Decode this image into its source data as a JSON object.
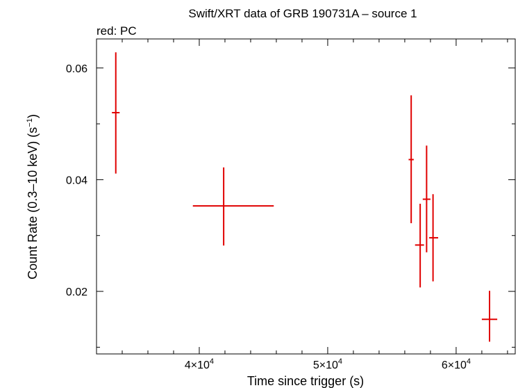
{
  "chart_data": {
    "type": "scatter",
    "title": "Swift/XRT data of GRB 190731A – source 1",
    "subtitle": "red: PC",
    "xlabel": "Time since trigger (s)",
    "ylabel": "Count Rate (0.3–10 keV) (s",
    "ylabel_exp": "−1",
    "ylabel_suffix": ")",
    "xlim": [
      32000,
      64600
    ],
    "ylim": [
      0.0088,
      0.0652
    ],
    "x_ticks": [
      {
        "value": 40000,
        "mantissa": "4×10",
        "exp": "4"
      },
      {
        "value": 50000,
        "mantissa": "5×10",
        "exp": "4"
      },
      {
        "value": 60000,
        "mantissa": "6×10",
        "exp": "4"
      }
    ],
    "x_minor_step": 2000,
    "y_ticks": [
      {
        "value": 0.02,
        "label": "0.02"
      },
      {
        "value": 0.04,
        "label": "0.04"
      },
      {
        "value": 0.06,
        "label": "0.06"
      }
    ],
    "y_minor_step": 0.01,
    "grid": false,
    "series": [
      {
        "color": "#e00000",
        "points": [
          {
            "x": 33500,
            "xmin": 33200,
            "xmax": 33800,
            "y": 0.052,
            "ylo": 0.0411,
            "yhi": 0.0628
          },
          {
            "x": 41900,
            "xmin": 39500,
            "xmax": 45800,
            "y": 0.0353,
            "ylo": 0.0282,
            "yhi": 0.0422
          },
          {
            "x": 56500,
            "xmin": 56300,
            "xmax": 56700,
            "y": 0.0436,
            "ylo": 0.0322,
            "yhi": 0.0551
          },
          {
            "x": 57200,
            "xmin": 56800,
            "xmax": 57500,
            "y": 0.0283,
            "ylo": 0.0207,
            "yhi": 0.0357
          },
          {
            "x": 57700,
            "xmin": 57400,
            "xmax": 58000,
            "y": 0.0365,
            "ylo": 0.027,
            "yhi": 0.0461
          },
          {
            "x": 58200,
            "xmin": 57900,
            "xmax": 58600,
            "y": 0.0296,
            "ylo": 0.0218,
            "yhi": 0.0374
          },
          {
            "x": 62600,
            "xmin": 62000,
            "xmax": 63200,
            "y": 0.015,
            "ylo": 0.011,
            "yhi": 0.0201
          }
        ]
      }
    ]
  }
}
